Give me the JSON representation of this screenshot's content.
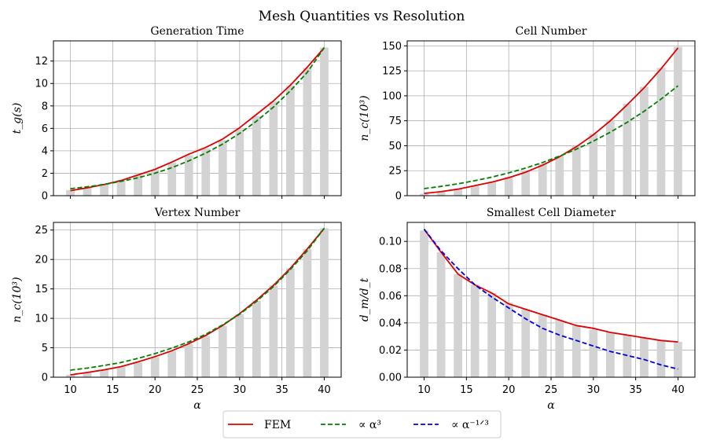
{
  "figure_title": "Mesh Quantities vs Resolution",
  "legend": {
    "entries": [
      {
        "label": "FEM",
        "color": "#e00000",
        "dash": "solid"
      },
      {
        "label": "∝ α³",
        "color": "#007f00",
        "dash": "dashed"
      },
      {
        "label": "∝ α⁻¹ᐟ³",
        "color": "#0000e0",
        "dash": "dashed"
      }
    ],
    "placement": "bottom-center"
  },
  "colors": {
    "bars": "#d3d3d3",
    "grid": "#b0b0b0",
    "fem": "#e00000",
    "cubic": "#007f00",
    "inverse": "#0000e0"
  },
  "chart_data": [
    {
      "type": "line",
      "title": "Generation Time",
      "ylabel": "t_g(s)",
      "xlabel": "",
      "xlim": [
        8,
        42
      ],
      "ylim": [
        0,
        13.8
      ],
      "xticks": [
        10,
        15,
        20,
        25,
        30,
        35,
        40
      ],
      "xticklabels": [],
      "yticks": [
        0,
        2,
        4,
        6,
        8,
        10,
        12
      ],
      "grid": true,
      "bars": {
        "x": [
          10,
          12,
          14,
          16,
          18,
          20,
          22,
          24,
          26,
          28,
          30,
          32,
          34,
          36,
          38,
          40
        ],
        "values": [
          0.5,
          0.75,
          1.05,
          1.4,
          1.85,
          2.3,
          2.95,
          3.6,
          4.2,
          4.95,
          5.9,
          7.1,
          8.4,
          9.8,
          11.4,
          13.2
        ]
      },
      "series": [
        {
          "name": "FEM",
          "color": "#e00000",
          "dash": "solid",
          "x": [
            10,
            12,
            14,
            16,
            18,
            20,
            22,
            24,
            26,
            28,
            30,
            32,
            34,
            36,
            38,
            40
          ],
          "y": [
            0.45,
            0.7,
            1.0,
            1.35,
            1.85,
            2.35,
            3.0,
            3.7,
            4.3,
            5.05,
            6.05,
            7.25,
            8.45,
            9.85,
            11.45,
            13.2
          ]
        },
        {
          "name": "∝ α³",
          "color": "#007f00",
          "dash": "dashed",
          "x": [
            10,
            12,
            14,
            16,
            18,
            20,
            22,
            24,
            26,
            28,
            30,
            32,
            34,
            36,
            38,
            40
          ],
          "y": [
            0.62,
            0.79,
            1.0,
            1.28,
            1.6,
            2.0,
            2.5,
            3.1,
            3.8,
            4.6,
            5.55,
            6.65,
            7.9,
            9.35,
            11.0,
            13.2
          ]
        }
      ]
    },
    {
      "type": "line",
      "title": "Cell Number",
      "ylabel": "n_c(10³)",
      "xlabel": "",
      "xlim": [
        8,
        42
      ],
      "ylim": [
        0,
        155
      ],
      "xticks": [
        10,
        15,
        20,
        25,
        30,
        35,
        40
      ],
      "xticklabels": [],
      "yticks": [
        0,
        25,
        50,
        75,
        100,
        125,
        150
      ],
      "grid": true,
      "bars": {
        "x": [
          10,
          12,
          14,
          16,
          18,
          20,
          22,
          24,
          26,
          28,
          30,
          32,
          34,
          36,
          38,
          40
        ],
        "values": [
          2,
          4,
          7,
          10,
          14,
          19,
          25,
          32,
          40,
          50,
          62,
          76,
          92,
          109,
          128,
          149
        ]
      },
      "series": [
        {
          "name": "FEM",
          "color": "#e00000",
          "dash": "solid",
          "x": [
            10,
            12,
            14,
            16,
            18,
            20,
            22,
            24,
            26,
            28,
            30,
            32,
            34,
            36,
            38,
            40
          ],
          "y": [
            2.3,
            4,
            6.5,
            10,
            13.5,
            18,
            23.5,
            30.5,
            39,
            49,
            61,
            75,
            91,
            108,
            127,
            148
          ]
        },
        {
          "name": "∝ α³",
          "color": "#007f00",
          "dash": "dashed",
          "x": [
            10,
            12,
            14,
            16,
            18,
            20,
            22,
            24,
            26,
            28,
            30,
            32,
            34,
            36,
            38,
            40
          ],
          "y": [
            7.1,
            9.3,
            11.9,
            15,
            18.6,
            22.8,
            27.6,
            33.2,
            39.5,
            46.6,
            54.6,
            63.6,
            73.5,
            84.5,
            96.7,
            110
          ]
        }
      ]
    },
    {
      "type": "line",
      "title": "Vertex Number",
      "ylabel": "n_c(10³)",
      "xlabel": "α",
      "xlim": [
        8,
        42
      ],
      "ylim": [
        0,
        26.3
      ],
      "xticks": [
        10,
        15,
        20,
        25,
        30,
        35,
        40
      ],
      "xticklabels": [
        "10",
        "15",
        "20",
        "25",
        "30",
        "35",
        "40"
      ],
      "yticks": [
        0,
        5,
        10,
        15,
        20,
        25
      ],
      "grid": true,
      "bars": {
        "x": [
          10,
          12,
          14,
          16,
          18,
          20,
          22,
          24,
          26,
          28,
          30,
          32,
          34,
          36,
          38,
          40
        ],
        "values": [
          0.4,
          0.8,
          1.25,
          1.8,
          2.5,
          3.4,
          4.4,
          5.6,
          7.0,
          8.7,
          10.7,
          13.0,
          15.6,
          18.5,
          21.8,
          25.3
        ]
      },
      "series": [
        {
          "name": "FEM",
          "color": "#e00000",
          "dash": "solid",
          "x": [
            10,
            12,
            14,
            16,
            18,
            20,
            22,
            24,
            26,
            28,
            30,
            32,
            34,
            36,
            38,
            40
          ],
          "y": [
            0.4,
            0.8,
            1.25,
            1.8,
            2.6,
            3.5,
            4.5,
            5.7,
            7.1,
            8.8,
            10.8,
            13.1,
            15.6,
            18.5,
            21.8,
            25.3
          ]
        },
        {
          "name": "∝ α³",
          "color": "#007f00",
          "dash": "dashed",
          "x": [
            10,
            12,
            14,
            16,
            18,
            20,
            22,
            24,
            26,
            28,
            30,
            32,
            34,
            36,
            38,
            40
          ],
          "y": [
            1.2,
            1.55,
            2.0,
            2.5,
            3.2,
            4.0,
            4.95,
            6.0,
            7.3,
            8.9,
            10.7,
            12.9,
            15.4,
            18.3,
            21.5,
            25.3
          ]
        }
      ]
    },
    {
      "type": "line",
      "title": "Smallest Cell Diameter",
      "ylabel": "d_m/d_t",
      "xlabel": "α",
      "xlim": [
        8,
        42
      ],
      "ylim": [
        0,
        0.114
      ],
      "xticks": [
        10,
        15,
        20,
        25,
        30,
        35,
        40
      ],
      "xticklabels": [
        "10",
        "15",
        "20",
        "25",
        "30",
        "35",
        "40"
      ],
      "yticks": [
        0,
        0.02,
        0.04,
        0.06,
        0.08,
        0.1
      ],
      "yticklabels": [
        "0.00",
        "0.02",
        "0.04",
        "0.06",
        "0.08",
        "0.10"
      ],
      "grid": true,
      "bars": {
        "x": [
          10,
          12,
          14,
          16,
          18,
          20,
          22,
          24,
          26,
          28,
          30,
          32,
          34,
          36,
          38,
          40
        ],
        "values": [
          0.108,
          0.092,
          0.076,
          0.068,
          0.062,
          0.055,
          0.05,
          0.046,
          0.042,
          0.038,
          0.035,
          0.033,
          0.031,
          0.029,
          0.027,
          0.026
        ]
      },
      "series": [
        {
          "name": "FEM",
          "color": "#e00000",
          "dash": "solid",
          "x": [
            10,
            12,
            14,
            16,
            18,
            20,
            22,
            24,
            26,
            28,
            30,
            32,
            34,
            36,
            38,
            40
          ],
          "y": [
            0.109,
            0.092,
            0.076,
            0.068,
            0.062,
            0.054,
            0.05,
            0.046,
            0.042,
            0.038,
            0.036,
            0.033,
            0.031,
            0.029,
            0.027,
            0.026
          ]
        },
        {
          "name": "∝ α⁻¹ᐟ³",
          "color": "#0000e0",
          "dash": "dashed",
          "x": [
            10,
            12,
            14,
            16,
            18,
            20,
            22,
            24,
            26,
            28,
            30,
            32,
            34,
            36,
            38,
            40
          ],
          "y": [
            0.109,
            0.093,
            0.08,
            0.068,
            0.059,
            0.051,
            0.043,
            0.036,
            0.031,
            0.027,
            0.023,
            0.019,
            0.016,
            0.013,
            0.009,
            0.006
          ]
        }
      ]
    }
  ]
}
